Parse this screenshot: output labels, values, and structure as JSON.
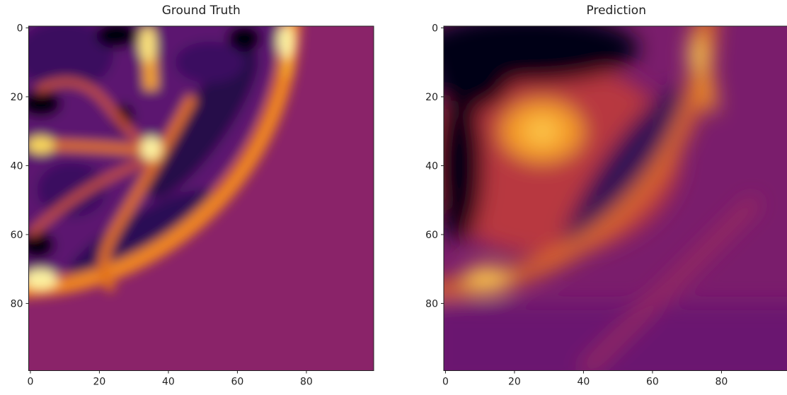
{
  "chart_data": [
    {
      "type": "heatmap",
      "title": "Ground Truth",
      "xlim": [
        -0.5,
        99.5
      ],
      "ylim": [
        99.5,
        -0.5
      ],
      "xticks": [
        0,
        20,
        40,
        60,
        80
      ],
      "yticks": [
        0,
        20,
        40,
        60,
        80
      ]
    },
    {
      "type": "heatmap",
      "title": "Prediction",
      "xlim": [
        -0.5,
        99.5
      ],
      "ylim": [
        99.5,
        -0.5
      ],
      "xticks": [
        0,
        20,
        40,
        60,
        80
      ],
      "yticks": [
        0,
        20,
        40,
        60,
        80
      ]
    }
  ]
}
